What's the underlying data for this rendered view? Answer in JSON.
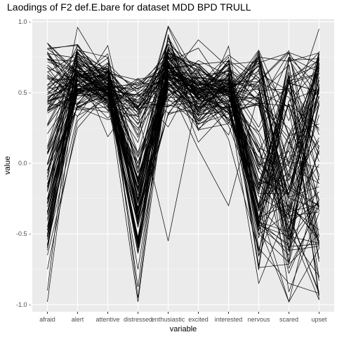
{
  "chart_data": {
    "type": "line",
    "title": "Laodings of F2 def.E.bare for dataset MDD BPD TRULL",
    "xlabel": "variable",
    "ylabel": "value",
    "categories": [
      "afraid",
      "alert",
      "attentive",
      "distressed",
      "enthusiastic",
      "excited",
      "interested",
      "nervous",
      "scared",
      "upset"
    ],
    "ylim": [
      -1.05,
      1.02
    ],
    "yticks": [
      1.0,
      0.5,
      0.0,
      -0.5,
      -1.0
    ],
    "ytick_labels": [
      "1.0 -",
      "0.5 -",
      "0.0 -",
      "-0.5 -",
      "-1.0 -"
    ],
    "grid": true,
    "legend": "none",
    "colors": {
      "panel": "#ebebeb",
      "grid_major": "#ffffff",
      "grid_minor": "#f5f5f5",
      "line": "#000000"
    },
    "series_count": 120,
    "series_template": {
      "values": [
        -0.2,
        0.58,
        0.55,
        -0.3,
        0.62,
        0.5,
        0.52,
        -0.2,
        -0.25,
        -0.3
      ],
      "spread": [
        0.35,
        0.12,
        0.1,
        0.3,
        0.12,
        0.12,
        0.12,
        0.3,
        0.3,
        0.4
      ]
    },
    "series": [
      {
        "values": [
          0.55,
          0.8,
          0.75,
          -0.95,
          0.75,
          0.7,
          0.72,
          -0.6,
          -0.85,
          -0.92
        ]
      },
      {
        "values": [
          -0.9,
          0.78,
          0.6,
          0.2,
          0.97,
          0.6,
          0.5,
          0.8,
          0.3,
          0.95
        ]
      },
      {
        "values": [
          0.85,
          0.5,
          0.45,
          0.6,
          0.4,
          0.55,
          0.7,
          -0.5,
          -0.7,
          0.7
        ]
      },
      {
        "values": [
          -0.65,
          0.25,
          0.5,
          -0.75,
          0.6,
          0.35,
          0.45,
          0.2,
          -0.5,
          -0.8
        ]
      },
      {
        "values": [
          0.1,
          0.6,
          0.62,
          0.35,
          -0.55,
          0.5,
          0.55,
          0.75,
          0.72,
          0.78
        ]
      },
      {
        "values": [
          -0.75,
          0.3,
          0.5,
          -0.6,
          0.55,
          0.1,
          -0.3,
          0.5,
          0.4,
          0.1
        ]
      }
    ]
  }
}
